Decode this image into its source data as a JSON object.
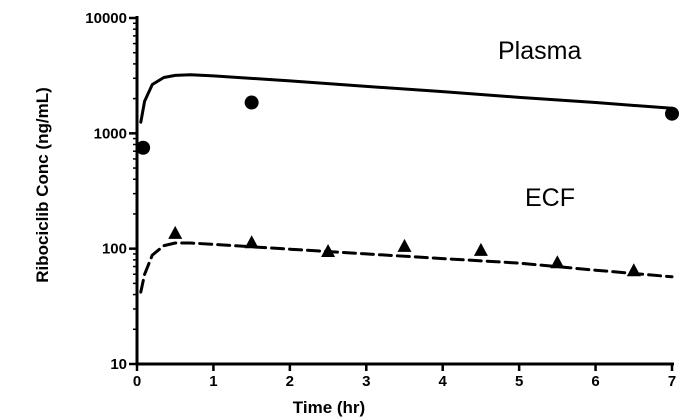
{
  "chart_data": {
    "type": "scatter",
    "xlabel": "Time (hr)",
    "ylabel": "Ribociclib  Conc (ng/mL)",
    "xlim": [
      0,
      7
    ],
    "ylim": [
      10,
      10000
    ],
    "yscale": "log",
    "x_ticks": [
      "0",
      "1",
      "2",
      "3",
      "4",
      "5",
      "6",
      "7"
    ],
    "y_ticks": [
      "10",
      "100",
      "1000",
      "10000"
    ],
    "grid": false,
    "colors": {
      "ink": "#000000",
      "background": "#ffffff"
    },
    "series": [
      {
        "name": "Plasma",
        "marker": "circle",
        "points": [
          {
            "x": 0.08,
            "y": 750
          },
          {
            "x": 1.5,
            "y": 1850
          },
          {
            "x": 7.0,
            "y": 1480
          }
        ],
        "fit_line": {
          "style": "solid",
          "points": [
            {
              "x": 0.05,
              "y": 1250
            },
            {
              "x": 0.1,
              "y": 1900
            },
            {
              "x": 0.2,
              "y": 2650
            },
            {
              "x": 0.35,
              "y": 3050
            },
            {
              "x": 0.5,
              "y": 3180
            },
            {
              "x": 0.7,
              "y": 3220
            },
            {
              "x": 1.0,
              "y": 3150
            },
            {
              "x": 2.0,
              "y": 2850
            },
            {
              "x": 3.0,
              "y": 2550
            },
            {
              "x": 4.0,
              "y": 2300
            },
            {
              "x": 5.0,
              "y": 2050
            },
            {
              "x": 6.0,
              "y": 1850
            },
            {
              "x": 7.0,
              "y": 1650
            }
          ]
        }
      },
      {
        "name": "ECF",
        "marker": "triangle",
        "points": [
          {
            "x": 0.5,
            "y": 135
          },
          {
            "x": 1.5,
            "y": 112
          },
          {
            "x": 2.5,
            "y": 94
          },
          {
            "x": 3.5,
            "y": 104
          },
          {
            "x": 4.5,
            "y": 96
          },
          {
            "x": 5.5,
            "y": 75
          },
          {
            "x": 6.5,
            "y": 64
          }
        ],
        "fit_line": {
          "style": "dashed",
          "points": [
            {
              "x": 0.05,
              "y": 42
            },
            {
              "x": 0.1,
              "y": 60
            },
            {
              "x": 0.2,
              "y": 88
            },
            {
              "x": 0.35,
              "y": 106
            },
            {
              "x": 0.5,
              "y": 112
            },
            {
              "x": 0.7,
              "y": 112
            },
            {
              "x": 1.0,
              "y": 109
            },
            {
              "x": 2.0,
              "y": 99
            },
            {
              "x": 3.0,
              "y": 90
            },
            {
              "x": 4.0,
              "y": 82
            },
            {
              "x": 5.0,
              "y": 75
            },
            {
              "x": 6.0,
              "y": 65
            },
            {
              "x": 7.0,
              "y": 57
            }
          ]
        }
      }
    ]
  }
}
